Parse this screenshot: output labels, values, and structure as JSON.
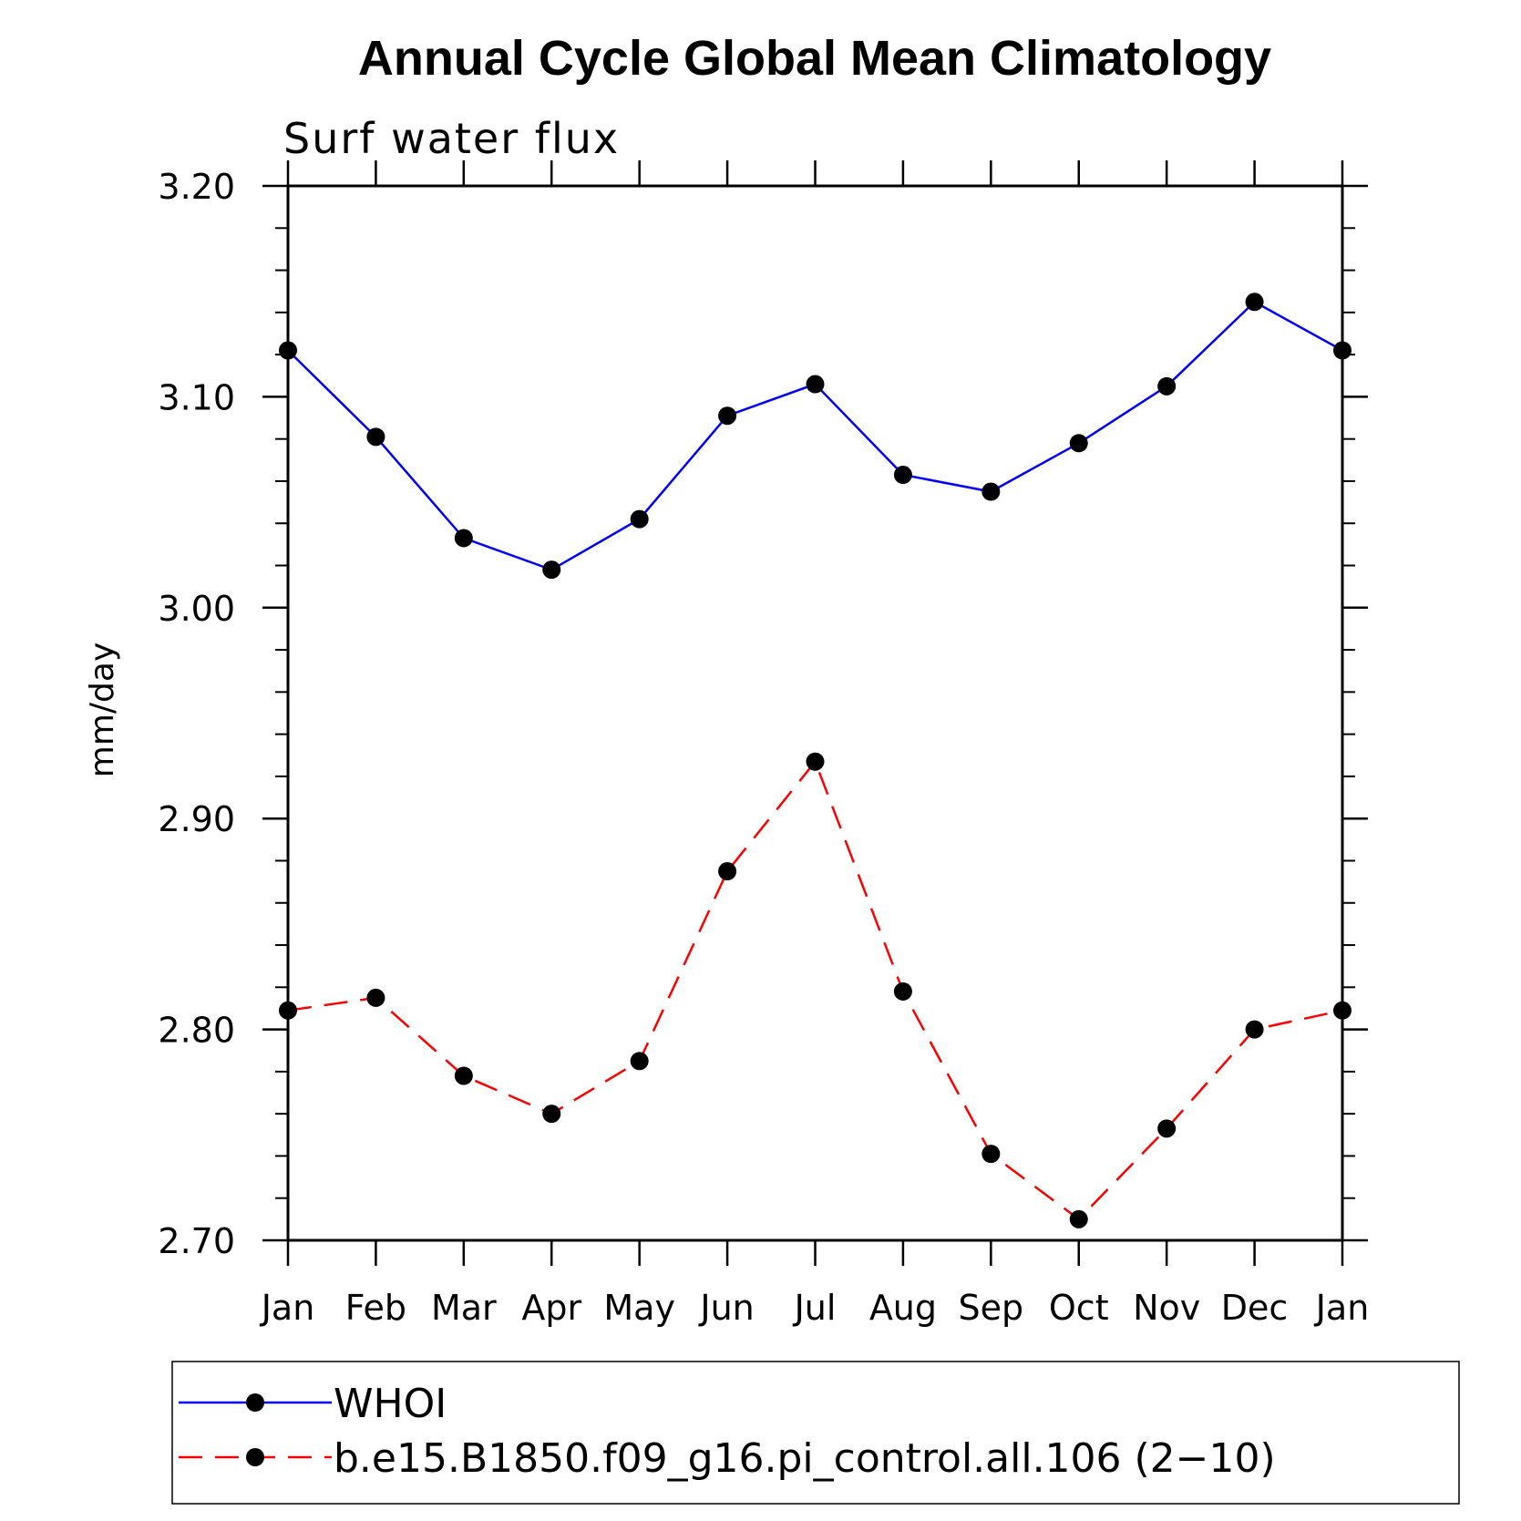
{
  "chart_data": {
    "type": "line",
    "title": "Annual Cycle Global Mean Climatology",
    "subtitle": "Surf water flux",
    "ylabel": "mm/day",
    "xlabel": "",
    "categories": [
      "Jan",
      "Feb",
      "Mar",
      "Apr",
      "May",
      "Jun",
      "Jul",
      "Aug",
      "Sep",
      "Oct",
      "Nov",
      "Dec",
      "Jan"
    ],
    "ylim": [
      2.7,
      3.2
    ],
    "yticks": [
      "2.70",
      "2.80",
      "2.90",
      "3.00",
      "3.10",
      "3.20"
    ],
    "grid": false,
    "legend_position": "bottom",
    "series": [
      {
        "name": "WHOI",
        "color": "#0000ff",
        "style": "solid",
        "marker": "dot",
        "values": [
          3.122,
          3.081,
          3.033,
          3.018,
          3.042,
          3.091,
          3.106,
          3.063,
          3.055,
          3.078,
          3.105,
          3.145,
          3.122
        ]
      },
      {
        "name": "b.e15.B1850.f09_g16.pi_control.all.106 (2−10)",
        "color": "#ff0000",
        "style": "dashed",
        "marker": "dot",
        "values": [
          2.809,
          2.815,
          2.778,
          2.76,
          2.785,
          2.875,
          2.927,
          2.818,
          2.741,
          2.71,
          2.753,
          2.8,
          2.809
        ]
      }
    ]
  }
}
